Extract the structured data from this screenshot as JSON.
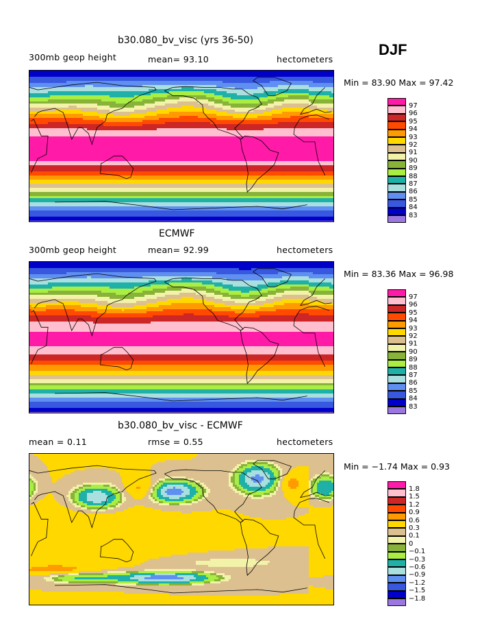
{
  "season": "DJF",
  "chart_data": [
    {
      "type": "heatmap",
      "title": "b30.080_bv_visc (yrs 36-50)",
      "left_label": "300mb geop height",
      "stat_text": "mean=   93.10",
      "units": "hectometers",
      "minmax_text": "Min =   83.90  Max =   97.42",
      "min": 83.9,
      "max": 97.42,
      "levels": [
        "97",
        "96",
        "95",
        "94",
        "93",
        "92",
        "91",
        "90",
        "89",
        "88",
        "87",
        "86",
        "85",
        "84",
        "83"
      ],
      "colors": [
        "#ff1aa8",
        "#ffbfcf",
        "#cc2626",
        "#ff4a00",
        "#ff9a00",
        "#ffd800",
        "#ddc090",
        "#f2f2a8",
        "#88b238",
        "#aaee44",
        "#1fb0a8",
        "#aadfe0",
        "#5f8ff0",
        "#3858e0",
        "#0000c8",
        "#9a78e0"
      ],
      "field": "model"
    },
    {
      "type": "heatmap",
      "title": "ECMWF",
      "left_label": "300mb geop height",
      "stat_text": "mean=   92.99",
      "units": "hectometers",
      "minmax_text": "Min =   83.36  Max =   96.98",
      "min": 83.36,
      "max": 96.98,
      "levels": [
        "97",
        "96",
        "95",
        "94",
        "93",
        "92",
        "91",
        "90",
        "89",
        "88",
        "87",
        "86",
        "85",
        "84",
        "83"
      ],
      "colors": [
        "#ff1aa8",
        "#ffbfcf",
        "#cc2626",
        "#ff4a00",
        "#ff9a00",
        "#ffd800",
        "#ddc090",
        "#f2f2a8",
        "#88b238",
        "#aaee44",
        "#1fb0a8",
        "#aadfe0",
        "#5f8ff0",
        "#3858e0",
        "#0000c8",
        "#9a78e0"
      ],
      "field": "obs"
    },
    {
      "type": "heatmap",
      "title": "b30.080_bv_visc - ECMWF",
      "left_label": "mean =     0.11",
      "stat_text": "rmse =     0.55",
      "units": "hectometers",
      "minmax_text": "Min =   −1.74  Max =     0.93",
      "min": -1.74,
      "max": 0.93,
      "levels": [
        "1.8",
        "1.5",
        "1.2",
        "0.9",
        "0.6",
        "0.3",
        "0.1",
        "0",
        "−0.1",
        "−0.3",
        "−0.6",
        "−0.9",
        "−1.2",
        "−1.5",
        "−1.8"
      ],
      "colors": [
        "#ff1aa8",
        "#ffbfcf",
        "#cc2626",
        "#ff4a00",
        "#ff9a00",
        "#ffd800",
        "#ddc090",
        "#f2f2a8",
        "#88b238",
        "#aaee44",
        "#1fb0a8",
        "#aadfe0",
        "#5f8ff0",
        "#3858e0",
        "#0000c8",
        "#9a78e0"
      ],
      "field": "diff"
    }
  ]
}
